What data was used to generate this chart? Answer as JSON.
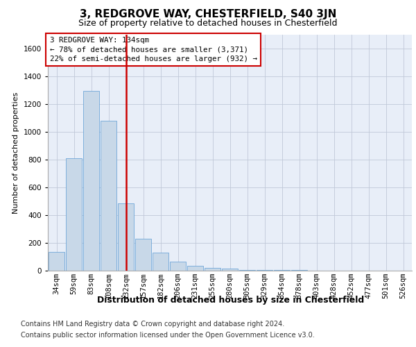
{
  "title": "3, REDGROVE WAY, CHESTERFIELD, S40 3JN",
  "subtitle": "Size of property relative to detached houses in Chesterfield",
  "xlabel": "Distribution of detached houses by size in Chesterfield",
  "ylabel": "Number of detached properties",
  "categories": [
    "34sqm",
    "59sqm",
    "83sqm",
    "108sqm",
    "132sqm",
    "157sqm",
    "182sqm",
    "206sqm",
    "231sqm",
    "255sqm",
    "280sqm",
    "305sqm",
    "329sqm",
    "354sqm",
    "378sqm",
    "403sqm",
    "428sqm",
    "452sqm",
    "477sqm",
    "501sqm",
    "526sqm"
  ],
  "values": [
    134,
    810,
    1295,
    1080,
    485,
    230,
    130,
    65,
    35,
    20,
    15,
    5,
    5,
    5,
    5,
    0,
    0,
    0,
    0,
    0,
    0
  ],
  "bar_color": "#c8d8e8",
  "bar_edge_color": "#5b9bd5",
  "vline_x_index": 4,
  "vline_color": "#cc0000",
  "annotation_text": "3 REDGROVE WAY: 134sqm\n← 78% of detached houses are smaller (3,371)\n22% of semi-detached houses are larger (932) →",
  "annotation_box_color": "white",
  "annotation_box_edge": "#cc0000",
  "ylim": [
    0,
    1700
  ],
  "yticks": [
    0,
    200,
    400,
    600,
    800,
    1000,
    1200,
    1400,
    1600
  ],
  "grid_color": "#c0c8d8",
  "background_color": "#e8eef8",
  "footer_line1": "Contains HM Land Registry data © Crown copyright and database right 2024.",
  "footer_line2": "Contains public sector information licensed under the Open Government Licence v3.0.",
  "title_fontsize": 11,
  "subtitle_fontsize": 9,
  "xlabel_fontsize": 9,
  "ylabel_fontsize": 8,
  "tick_fontsize": 7.5,
  "footer_fontsize": 7
}
